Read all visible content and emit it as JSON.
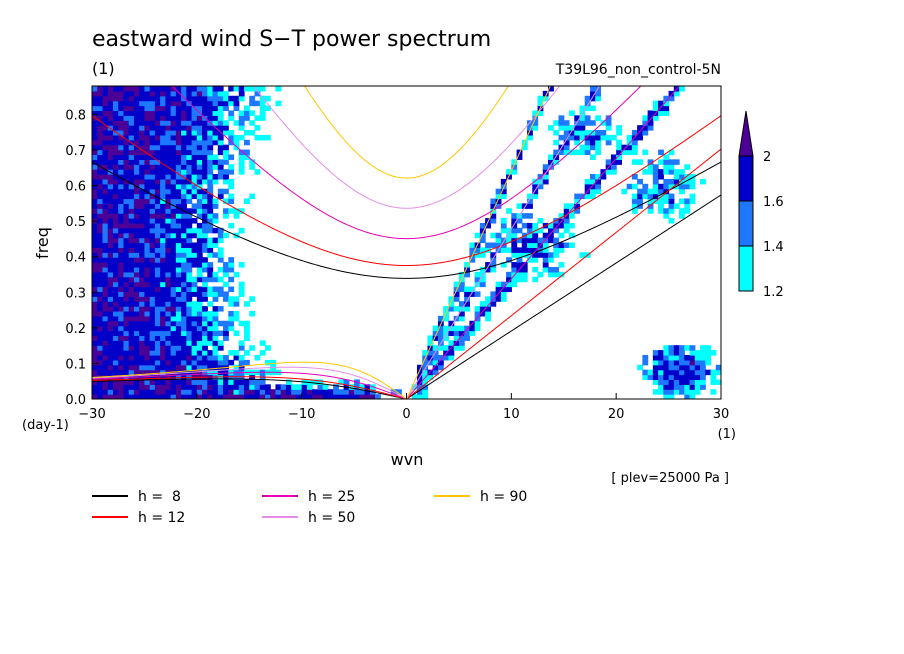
{
  "chart_data": {
    "type": "heatmap",
    "title": "eastward wind S−T power spectrum",
    "subtitle_left": "(1)",
    "subtitle_right": "T39L96_non_control-5N",
    "xlabel": "wvn",
    "ylabel": "freq",
    "x_units": "(1)",
    "y_units": "(day-1)",
    "annotation": "[ plev=25000 Pa ]",
    "xlim": [
      -30,
      30
    ],
    "ylim": [
      0.0,
      0.88
    ],
    "xticks": [
      -30,
      -20,
      -10,
      0,
      10,
      20,
      30
    ],
    "xtick_labels": [
      "−30",
      "−20",
      "−10",
      "0",
      "10",
      "20",
      "30"
    ],
    "yticks": [
      0.0,
      0.1,
      0.2,
      0.3,
      0.4,
      0.5,
      0.6,
      0.7,
      0.8
    ],
    "ytick_labels": [
      "0.0",
      "0.1",
      "0.2",
      "0.3",
      "0.4",
      "0.5",
      "0.6",
      "0.7",
      "0.8"
    ],
    "colorbar": {
      "levels": [
        1.2,
        1.4,
        1.6,
        2
      ],
      "level_labels": [
        "1.2",
        "1.4",
        "1.6",
        "2"
      ],
      "colors": [
        "#00ffff",
        "#1e78ff",
        "#0000c8",
        "#4b0096"
      ]
    },
    "dispersion_curves": [
      {
        "name": "h =  8",
        "color": "#000000"
      },
      {
        "name": "h = 12",
        "color": "#ff0000"
      },
      {
        "name": "h = 25",
        "color": "#e600b4"
      },
      {
        "name": "h = 50",
        "color": "#e68ce6"
      },
      {
        "name": "h = 90",
        "color": "#ffc800"
      }
    ],
    "grid": false
  }
}
